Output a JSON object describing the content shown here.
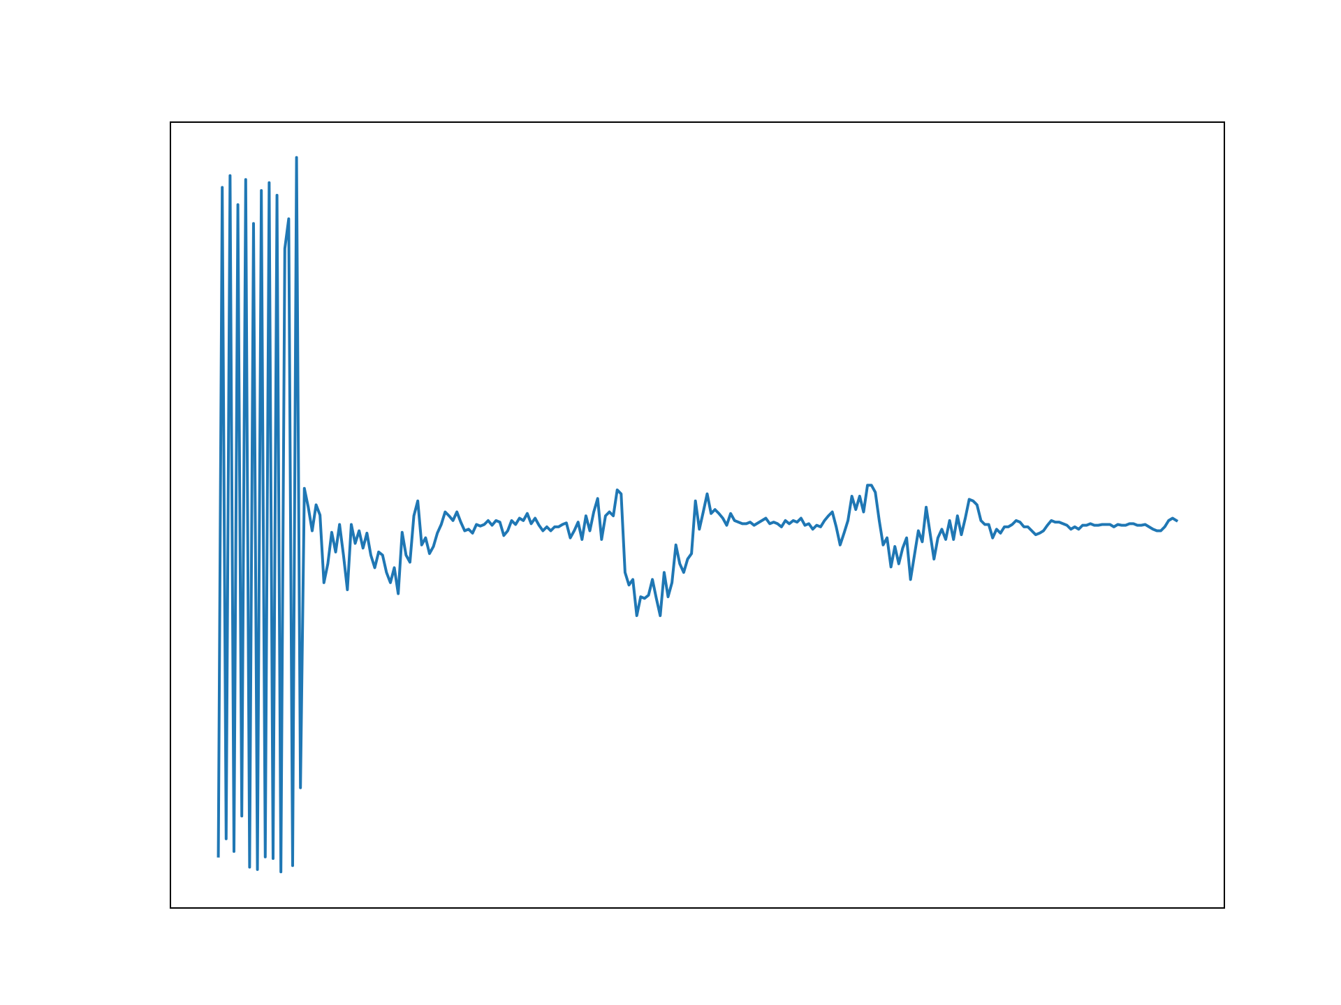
{
  "chart_data": {
    "type": "line",
    "color": "#1f77b4",
    "xlim": [
      -12.25,
      257.25
    ],
    "ylim": [
      0,
      100
    ],
    "values": [
      6.6,
      91.7,
      8.8,
      93.2,
      7.2,
      89.5,
      11.7,
      92.7,
      5.2,
      87.1,
      4.9,
      91.3,
      6.5,
      92.3,
      6.3,
      90.7,
      4.6,
      83.9,
      87.7,
      5.4,
      95.5,
      15.3,
      53.4,
      51.0,
      48.0,
      51.3,
      50.0,
      41.4,
      43.8,
      47.8,
      45.3,
      48.8,
      44.9,
      40.5,
      48.8,
      46.4,
      48.0,
      45.8,
      47.7,
      44.9,
      43.3,
      45.3,
      44.9,
      42.7,
      41.4,
      43.3,
      40.0,
      47.8,
      44.9,
      44.0,
      49.9,
      51.8,
      46.2,
      47.1,
      45.1,
      46.0,
      47.7,
      48.8,
      50.4,
      49.9,
      49.3,
      50.4,
      49.1,
      48.0,
      48.2,
      47.7,
      48.8,
      48.6,
      48.8,
      49.3,
      48.7,
      49.3,
      49.1,
      47.4,
      48.0,
      49.3,
      48.8,
      49.6,
      49.3,
      50.2,
      48.9,
      49.6,
      48.7,
      48.0,
      48.5,
      48.0,
      48.5,
      48.5,
      48.8,
      49.0,
      47.1,
      48.0,
      49.1,
      46.9,
      49.9,
      48.0,
      50.4,
      52.1,
      46.9,
      49.9,
      50.4,
      49.9,
      53.2,
      52.7,
      42.7,
      41.1,
      41.8,
      37.2,
      39.6,
      39.4,
      39.8,
      41.8,
      39.4,
      37.2,
      42.7,
      39.6,
      41.4,
      46.2,
      43.8,
      42.7,
      44.4,
      45.1,
      51.8,
      48.2,
      50.4,
      52.7,
      50.2,
      50.7,
      50.2,
      49.6,
      48.7,
      50.2,
      49.3,
      49.1,
      48.9,
      48.9,
      49.1,
      48.7,
      49.0,
      49.3,
      49.6,
      48.9,
      49.1,
      48.9,
      48.5,
      49.3,
      48.9,
      49.3,
      49.1,
      49.6,
      48.7,
      48.9,
      48.2,
      48.7,
      48.5,
      49.3,
      49.9,
      50.4,
      48.5,
      46.2,
      47.7,
      49.3,
      52.4,
      50.7,
      52.4,
      50.4,
      53.8,
      53.8,
      52.9,
      49.3,
      46.2,
      47.1,
      43.4,
      46.0,
      43.8,
      45.8,
      47.1,
      41.8,
      44.9,
      48.0,
      46.6,
      51.0,
      47.7,
      44.4,
      47.1,
      48.2,
      46.9,
      49.3,
      46.9,
      49.9,
      47.5,
      49.6,
      52.0,
      51.8,
      51.3,
      49.3,
      48.8,
      48.8,
      47.1,
      48.2,
      47.7,
      48.5,
      48.5,
      48.8,
      49.3,
      49.1,
      48.5,
      48.5,
      48.0,
      47.5,
      47.7,
      48.0,
      48.7,
      49.3,
      49.1,
      49.1,
      48.9,
      48.7,
      48.2,
      48.5,
      48.2,
      48.7,
      48.7,
      48.9,
      48.7,
      48.7,
      48.8,
      48.8,
      48.8,
      48.5,
      48.8,
      48.7,
      48.7,
      48.9,
      48.9,
      48.7,
      48.7,
      48.8,
      48.5,
      48.2,
      48.0,
      48.0,
      48.5,
      49.3,
      49.6,
      49.3
    ]
  }
}
